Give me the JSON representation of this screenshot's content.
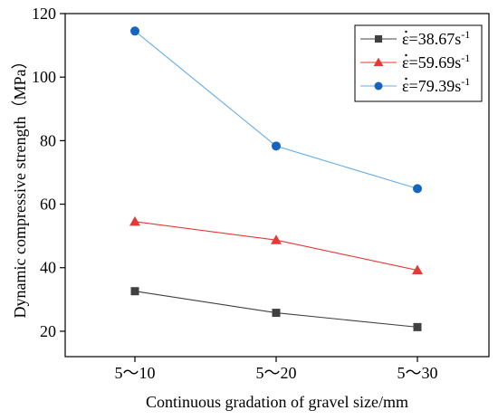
{
  "chart_data": {
    "type": "line",
    "title": "",
    "xlabel": "Continuous gradation of gravel size/mm",
    "ylabel": "Dynamic compressive strength（MPa）",
    "categories": [
      "5～10",
      "5～20",
      "5～30"
    ],
    "ylim": [
      12,
      120
    ],
    "yticks": [
      20,
      40,
      60,
      80,
      100,
      120
    ],
    "grid": false,
    "legend_position": "top-right",
    "series": [
      {
        "name": "ε=38.67s-1",
        "legend_base": "ε=38.67s",
        "legend_sup": "-1",
        "color": "#404040",
        "marker": "square",
        "values": [
          32.6,
          25.8,
          21.3
        ]
      },
      {
        "name": "ε=59.69s-1",
        "legend_base": "ε=59.69s",
        "legend_sup": "-1",
        "color": "#e53935",
        "marker": "triangle",
        "values": [
          54.5,
          48.7,
          39.2
        ]
      },
      {
        "name": "ε=79.39s-1",
        "legend_base": "ε=79.39s",
        "legend_sup": "-1",
        "color": "#1565c0",
        "line_color": "#6aaee6",
        "marker": "circle",
        "values": [
          114.5,
          78.3,
          64.9
        ]
      }
    ]
  }
}
